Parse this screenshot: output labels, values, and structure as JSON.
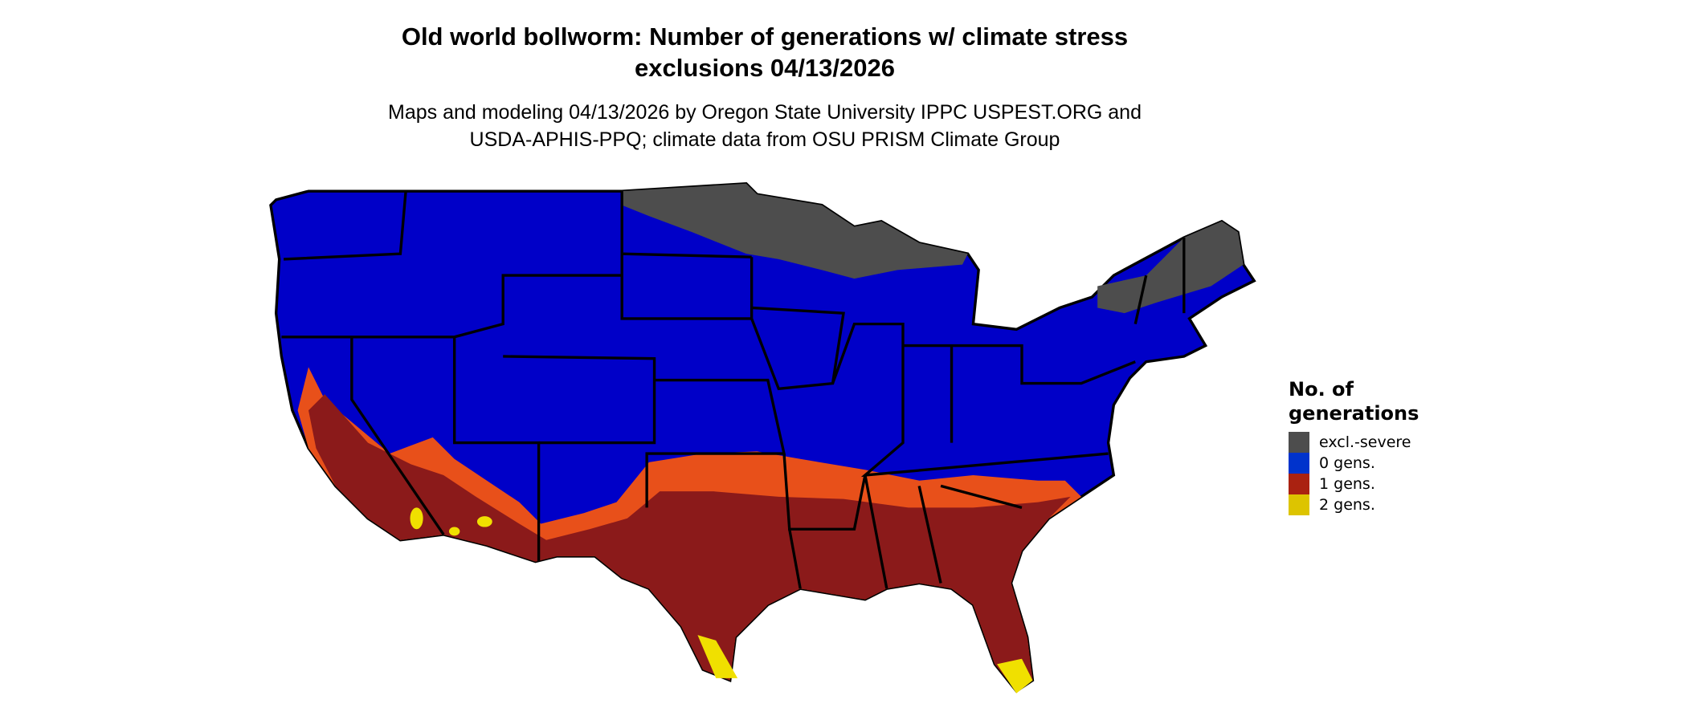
{
  "title_line1": "Old world bollworm: Number of generations w/ climate stress",
  "title_line2": "exclusions 04/13/2026",
  "subtitle_line1": "Maps and modeling 04/13/2026 by Oregon State University IPPC USPEST.ORG and",
  "subtitle_line2": "USDA-APHIS-PPQ; climate data from OSU PRISM Climate Group",
  "legend": {
    "title": "No. of generations",
    "items": [
      {
        "label": "excl.-severe",
        "color": "#4d4d4d"
      },
      {
        "label": "0 gens.",
        "color": "#0033cc"
      },
      {
        "label": "1 gens.",
        "color": "#aa2211"
      },
      {
        "label": "2 gens.",
        "color": "#ddc400"
      }
    ]
  },
  "map_colors": {
    "excluded": "#4d4d4d",
    "zero": "#0000c8",
    "one": "#8b1a1a",
    "one_edge": "#e8501a",
    "two": "#f0e000"
  }
}
